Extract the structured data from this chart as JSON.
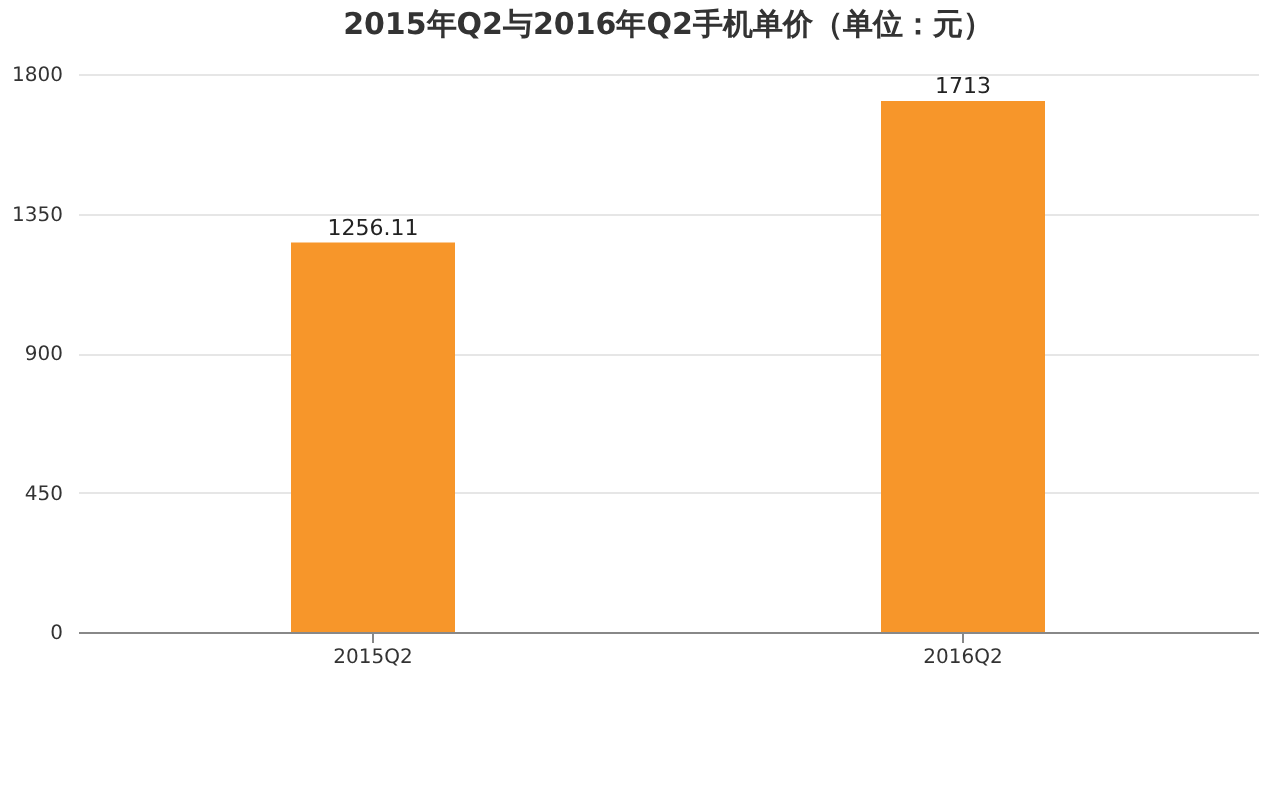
{
  "chart_data": {
    "type": "bar",
    "title": "2015年Q2与2016年Q2手机单价（单位：元）",
    "categories": [
      "2015Q2",
      "2016Q2"
    ],
    "values": [
      1256.11,
      1713
    ],
    "color": "#f7962a",
    "ylim": [
      0,
      1800
    ],
    "yticks": [
      0,
      450,
      900,
      1350,
      1800
    ],
    "grid": "y",
    "data_labels": true
  }
}
